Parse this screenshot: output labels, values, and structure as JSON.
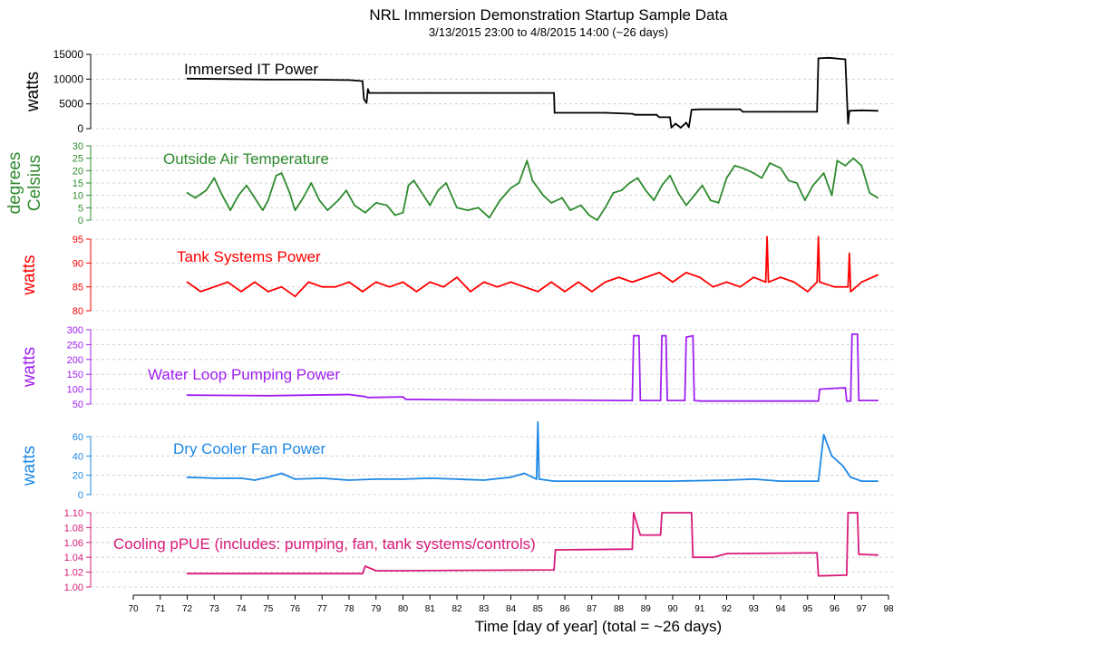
{
  "title": "NRL Immersion Demonstration Startup Sample Data",
  "subtitle": "3/13/2015 23:00  to  4/8/2015 14:00 (~26 days)",
  "xlabel": "Time [day of year] (total = ~26 days)",
  "chart_data": {
    "type": "line",
    "x_axis": {
      "min": 70,
      "max": 98,
      "ticks": [
        70,
        71,
        72,
        73,
        74,
        75,
        76,
        77,
        78,
        79,
        80,
        81,
        82,
        83,
        84,
        85,
        86,
        87,
        88,
        89,
        90,
        91,
        92,
        93,
        94,
        95,
        96,
        97,
        98
      ]
    },
    "panels": [
      {
        "id": "it",
        "label": "Immersed IT Power",
        "ylabel": "watts",
        "color": "#000000",
        "ylim": [
          0,
          15000
        ],
        "yticks": [
          0,
          5000,
          10000,
          15000
        ],
        "points": [
          [
            72,
            10100
          ],
          [
            73.6,
            10000
          ],
          [
            75,
            9900
          ],
          [
            76.5,
            9900
          ],
          [
            78,
            9800
          ],
          [
            78.5,
            9600
          ],
          [
            78.55,
            6000
          ],
          [
            78.65,
            5200
          ],
          [
            78.7,
            8000
          ],
          [
            78.75,
            7200
          ],
          [
            79.5,
            7200
          ],
          [
            81,
            7200
          ],
          [
            83,
            7200
          ],
          [
            85,
            7200
          ],
          [
            85.6,
            7200
          ],
          [
            85.62,
            3200
          ],
          [
            87,
            3200
          ],
          [
            87.5,
            3200
          ],
          [
            88.5,
            3000
          ],
          [
            88.6,
            2800
          ],
          [
            89.4,
            2800
          ],
          [
            89.5,
            2300
          ],
          [
            89.9,
            2300
          ],
          [
            89.95,
            200
          ],
          [
            90.1,
            1000
          ],
          [
            90.3,
            200
          ],
          [
            90.5,
            1200
          ],
          [
            90.6,
            300
          ],
          [
            90.7,
            3800
          ],
          [
            91,
            3900
          ],
          [
            92.5,
            3900
          ],
          [
            92.6,
            3400
          ],
          [
            94,
            3400
          ],
          [
            95.35,
            3400
          ],
          [
            95.4,
            14200
          ],
          [
            95.8,
            14300
          ],
          [
            96.4,
            14000
          ],
          [
            96.5,
            1000
          ],
          [
            96.55,
            3600
          ],
          [
            97,
            3700
          ],
          [
            97.6,
            3600
          ]
        ]
      },
      {
        "id": "oat",
        "label": "Outside Air Temperature",
        "ylabel": "degrees Celsius",
        "color": "#2e8b2e",
        "ylim": [
          0,
          30
        ],
        "yticks": [
          0,
          5,
          10,
          15,
          20,
          25,
          30
        ],
        "points": [
          [
            72,
            11
          ],
          [
            72.3,
            9
          ],
          [
            72.7,
            12
          ],
          [
            73,
            17
          ],
          [
            73.3,
            10
          ],
          [
            73.6,
            4
          ],
          [
            73.9,
            10
          ],
          [
            74.2,
            14
          ],
          [
            74.5,
            9
          ],
          [
            74.8,
            4
          ],
          [
            75,
            8
          ],
          [
            75.3,
            18
          ],
          [
            75.5,
            19
          ],
          [
            75.8,
            11
          ],
          [
            76,
            4
          ],
          [
            76.3,
            9
          ],
          [
            76.6,
            15
          ],
          [
            76.9,
            8
          ],
          [
            77.2,
            4
          ],
          [
            77.6,
            8
          ],
          [
            77.9,
            12
          ],
          [
            78.2,
            6
          ],
          [
            78.6,
            3
          ],
          [
            79,
            7
          ],
          [
            79.4,
            6
          ],
          [
            79.7,
            2
          ],
          [
            80,
            3
          ],
          [
            80.2,
            14
          ],
          [
            80.4,
            16
          ],
          [
            80.7,
            11
          ],
          [
            81,
            6
          ],
          [
            81.3,
            12
          ],
          [
            81.6,
            15
          ],
          [
            82,
            5
          ],
          [
            82.4,
            4
          ],
          [
            82.8,
            5
          ],
          [
            83.2,
            1
          ],
          [
            83.6,
            8
          ],
          [
            84,
            13
          ],
          [
            84.3,
            15
          ],
          [
            84.6,
            24
          ],
          [
            84.8,
            16
          ],
          [
            85.2,
            10
          ],
          [
            85.5,
            7
          ],
          [
            85.9,
            9
          ],
          [
            86.2,
            4
          ],
          [
            86.6,
            6
          ],
          [
            86.9,
            2
          ],
          [
            87.2,
            0
          ],
          [
            87.5,
            5
          ],
          [
            87.8,
            11
          ],
          [
            88.1,
            12
          ],
          [
            88.4,
            15
          ],
          [
            88.7,
            17
          ],
          [
            89,
            12
          ],
          [
            89.3,
            8
          ],
          [
            89.6,
            14
          ],
          [
            89.9,
            18
          ],
          [
            90.2,
            11
          ],
          [
            90.5,
            6
          ],
          [
            90.8,
            10
          ],
          [
            91.1,
            14
          ],
          [
            91.4,
            8
          ],
          [
            91.7,
            7
          ],
          [
            92,
            17
          ],
          [
            92.3,
            22
          ],
          [
            92.6,
            21
          ],
          [
            93,
            19
          ],
          [
            93.3,
            17
          ],
          [
            93.6,
            23
          ],
          [
            94,
            21
          ],
          [
            94.3,
            16
          ],
          [
            94.6,
            15
          ],
          [
            94.9,
            8
          ],
          [
            95.2,
            14
          ],
          [
            95.6,
            19
          ],
          [
            95.9,
            10
          ],
          [
            96.1,
            24
          ],
          [
            96.4,
            22
          ],
          [
            96.7,
            25
          ],
          [
            97,
            22
          ],
          [
            97.3,
            11
          ],
          [
            97.6,
            9
          ]
        ]
      },
      {
        "id": "tank",
        "label": "Tank Systems Power",
        "ylabel": "watts",
        "color": "#ff0000",
        "ylim": [
          80,
          95
        ],
        "yticks": [
          80,
          85,
          90,
          95
        ],
        "points": [
          [
            72,
            86
          ],
          [
            72.5,
            84
          ],
          [
            73,
            85
          ],
          [
            73.5,
            86
          ],
          [
            74,
            84
          ],
          [
            74.5,
            86
          ],
          [
            75,
            84
          ],
          [
            75.5,
            85
          ],
          [
            76,
            83
          ],
          [
            76.5,
            86
          ],
          [
            77,
            85
          ],
          [
            77.5,
            85
          ],
          [
            78,
            86
          ],
          [
            78.5,
            84
          ],
          [
            79,
            86
          ],
          [
            79.5,
            85
          ],
          [
            80,
            86
          ],
          [
            80.5,
            84
          ],
          [
            81,
            86
          ],
          [
            81.5,
            85
          ],
          [
            82,
            87
          ],
          [
            82.5,
            84
          ],
          [
            83,
            86
          ],
          [
            83.5,
            85
          ],
          [
            84,
            86
          ],
          [
            84.5,
            85
          ],
          [
            85,
            84
          ],
          [
            85.5,
            86
          ],
          [
            86,
            84
          ],
          [
            86.5,
            86
          ],
          [
            87,
            84
          ],
          [
            87.5,
            86
          ],
          [
            88,
            87
          ],
          [
            88.5,
            86
          ],
          [
            89,
            87
          ],
          [
            89.5,
            88
          ],
          [
            90,
            86
          ],
          [
            90.5,
            88
          ],
          [
            91,
            87
          ],
          [
            91.5,
            85
          ],
          [
            92,
            86
          ],
          [
            92.5,
            85
          ],
          [
            93,
            87
          ],
          [
            93.45,
            86
          ],
          [
            93.5,
            95.5
          ],
          [
            93.55,
            86
          ],
          [
            94,
            87
          ],
          [
            94.5,
            86
          ],
          [
            95,
            84
          ],
          [
            95.35,
            86
          ],
          [
            95.4,
            95.5
          ],
          [
            95.45,
            86
          ],
          [
            96,
            85
          ],
          [
            96.5,
            85
          ],
          [
            96.55,
            92
          ],
          [
            96.6,
            84
          ],
          [
            97,
            86
          ],
          [
            97.6,
            87.5
          ]
        ]
      },
      {
        "id": "pump",
        "label": "Water Loop Pumping Power",
        "ylabel": "watts",
        "color": "#a020f0",
        "ylim": [
          50,
          300
        ],
        "yticks": [
          50,
          100,
          150,
          200,
          250,
          300
        ],
        "points": [
          [
            72,
            80
          ],
          [
            75,
            78
          ],
          [
            78,
            82
          ],
          [
            78.6,
            75
          ],
          [
            78.7,
            72
          ],
          [
            80,
            74
          ],
          [
            80.1,
            66
          ],
          [
            82,
            64
          ],
          [
            84,
            63
          ],
          [
            86,
            63
          ],
          [
            88,
            62
          ],
          [
            88.5,
            62
          ],
          [
            88.55,
            280
          ],
          [
            88.75,
            280
          ],
          [
            88.8,
            62
          ],
          [
            89.55,
            62
          ],
          [
            89.6,
            280
          ],
          [
            89.75,
            280
          ],
          [
            89.8,
            62
          ],
          [
            90.45,
            62
          ],
          [
            90.5,
            275
          ],
          [
            90.75,
            280
          ],
          [
            90.8,
            62
          ],
          [
            91,
            60
          ],
          [
            93,
            60
          ],
          [
            95,
            60
          ],
          [
            95.4,
            60
          ],
          [
            95.45,
            100
          ],
          [
            96.4,
            105
          ],
          [
            96.45,
            60
          ],
          [
            96.6,
            60
          ],
          [
            96.65,
            285
          ],
          [
            96.85,
            285
          ],
          [
            96.9,
            62
          ],
          [
            97.6,
            62
          ]
        ]
      },
      {
        "id": "fan",
        "label": "Dry Cooler Fan Power",
        "ylabel": "watts",
        "color": "#1e88e5",
        "ylim": [
          0,
          60
        ],
        "yticks": [
          0,
          20,
          40,
          60
        ],
        "points": [
          [
            72,
            18
          ],
          [
            73,
            17
          ],
          [
            74,
            17
          ],
          [
            74.5,
            15
          ],
          [
            75,
            18
          ],
          [
            75.5,
            22
          ],
          [
            76,
            16
          ],
          [
            77,
            17
          ],
          [
            78,
            15
          ],
          [
            79,
            16
          ],
          [
            80,
            16
          ],
          [
            81,
            17
          ],
          [
            82,
            16
          ],
          [
            83,
            15
          ],
          [
            84,
            18
          ],
          [
            84.5,
            22
          ],
          [
            84.95,
            16
          ],
          [
            85,
            75
          ],
          [
            85.05,
            16
          ],
          [
            85.6,
            14
          ],
          [
            86,
            14
          ],
          [
            88,
            14
          ],
          [
            90,
            14
          ],
          [
            92,
            15
          ],
          [
            93,
            16
          ],
          [
            94,
            14
          ],
          [
            95,
            14
          ],
          [
            95.4,
            14
          ],
          [
            95.6,
            62
          ],
          [
            95.9,
            40
          ],
          [
            96.3,
            30
          ],
          [
            96.6,
            18
          ],
          [
            97,
            14
          ],
          [
            97.6,
            14
          ]
        ]
      },
      {
        "id": "ppue",
        "label": "Cooling pPUE (includes: pumping, fan, tank systems/controls)",
        "ylabel": "",
        "color": "#d81b7a",
        "ylim": [
          1.0,
          1.1
        ],
        "yticks": [
          "1.00",
          "1.02",
          "1.04",
          "1.06",
          "1.08",
          "1.10"
        ],
        "points": [
          [
            72,
            1.018
          ],
          [
            78.5,
            1.018
          ],
          [
            78.6,
            1.028
          ],
          [
            79,
            1.022
          ],
          [
            80,
            1.022
          ],
          [
            85.6,
            1.023
          ],
          [
            85.65,
            1.05
          ],
          [
            88.5,
            1.051
          ],
          [
            88.55,
            1.1
          ],
          [
            88.8,
            1.07
          ],
          [
            89.55,
            1.07
          ],
          [
            89.6,
            1.1
          ],
          [
            89.65,
            1.1
          ],
          [
            90.7,
            1.1
          ],
          [
            90.75,
            1.04
          ],
          [
            91.5,
            1.04
          ],
          [
            92,
            1.045
          ],
          [
            95.35,
            1.046
          ],
          [
            95.4,
            1.015
          ],
          [
            96.45,
            1.016
          ],
          [
            96.5,
            1.1
          ],
          [
            96.85,
            1.1
          ],
          [
            96.9,
            1.044
          ],
          [
            97.6,
            1.043
          ]
        ]
      }
    ]
  }
}
